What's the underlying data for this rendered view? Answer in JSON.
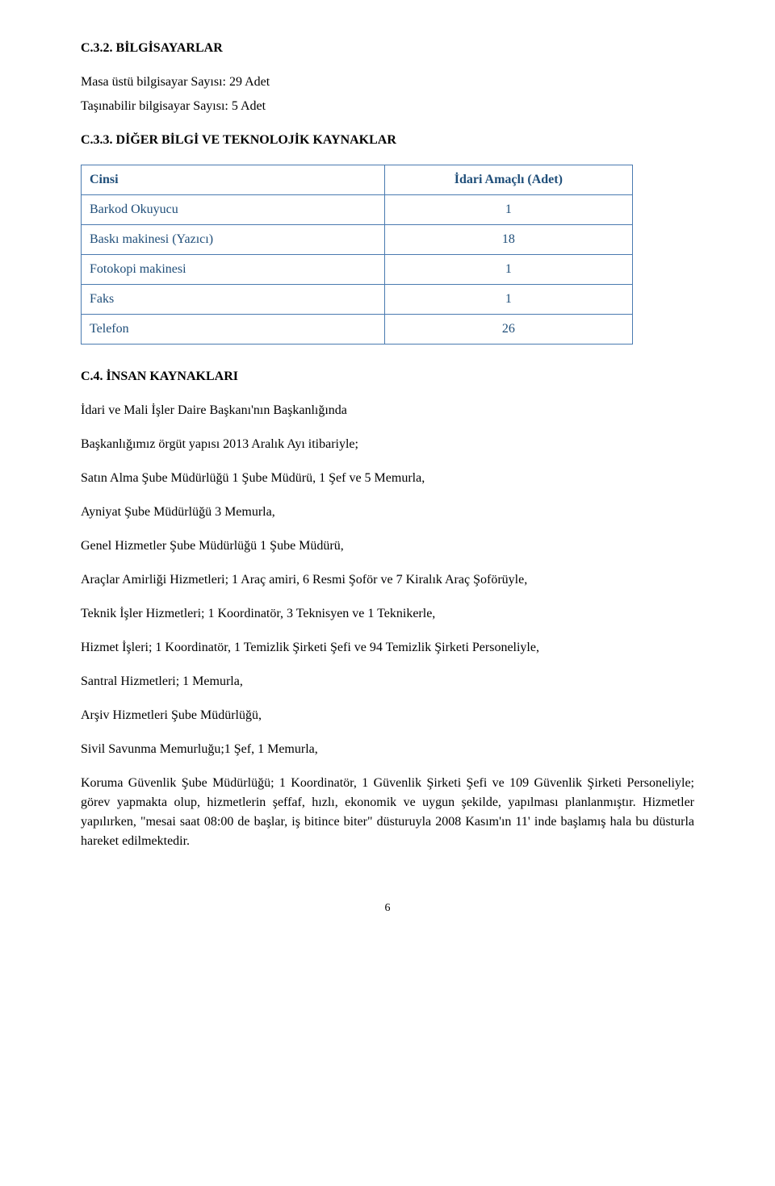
{
  "section1": {
    "heading": "C.3.2. BİLGİSAYARLAR",
    "line1": "Masa üstü bilgisayar Sayısı: 29 Adet",
    "line2": "Taşınabilir bilgisayar Sayısı:   5 Adet"
  },
  "section2": {
    "heading": "C.3.3. DİĞER BİLGİ VE TEKNOLOJİK KAYNAKLAR",
    "table": {
      "header": {
        "c1": "Cinsi",
        "c2": "İdari Amaçlı (Adet)"
      },
      "rows": [
        {
          "c1": "Barkod Okuyucu",
          "c2": "1"
        },
        {
          "c1": "Baskı makinesi (Yazıcı)",
          "c2": "18"
        },
        {
          "c1": "Fotokopi makinesi",
          "c2": "1"
        },
        {
          "c1": "Faks",
          "c2": "1"
        },
        {
          "c1": "Telefon",
          "c2": "26"
        }
      ]
    }
  },
  "section3": {
    "heading": "C.4.   İNSAN KAYNAKLARI",
    "p1": "İdari ve Mali İşler Daire Başkanı'nın Başkanlığında",
    "p2": "Başkanlığımız örgüt yapısı 2013 Aralık Ayı itibariyle;",
    "p3": "Satın Alma Şube Müdürlüğü 1 Şube Müdürü, 1 Şef ve 5 Memurla,",
    "p4": "Ayniyat Şube Müdürlüğü 3 Memurla,",
    "p5": "Genel Hizmetler Şube Müdürlüğü 1 Şube Müdürü,",
    "p6": "Araçlar Amirliği Hizmetleri; 1 Araç amiri, 6 Resmi Şoför ve 7 Kiralık Araç Şoförüyle,",
    "p7": "Teknik İşler Hizmetleri; 1 Koordinatör, 3 Teknisyen ve 1 Teknikerle,",
    "p8": "Hizmet İşleri; 1 Koordinatör, 1 Temizlik Şirketi Şefi ve 94 Temizlik Şirketi Personeliyle,",
    "p9": "Santral Hizmetleri; 1 Memurla,",
    "p10": "Arşiv Hizmetleri Şube Müdürlüğü,",
    "p11": "Sivil Savunma Memurluğu;1 Şef, 1 Memurla,",
    "p12": "Koruma Güvenlik Şube Müdürlüğü; 1 Koordinatör, 1 Güvenlik Şirketi Şefi ve 109 Güvenlik Şirketi Personeliyle; görev yapmakta olup, hizmetlerin şeffaf, hızlı, ekonomik ve uygun şekilde, yapılması planlanmıştır. Hizmetler yapılırken, \"mesai saat 08:00 de başlar, iş bitince biter\" düsturuyla 2008 Kasım'ın 11' inde başlamış hala bu düsturla hareket edilmektedir."
  },
  "page_number": "6"
}
